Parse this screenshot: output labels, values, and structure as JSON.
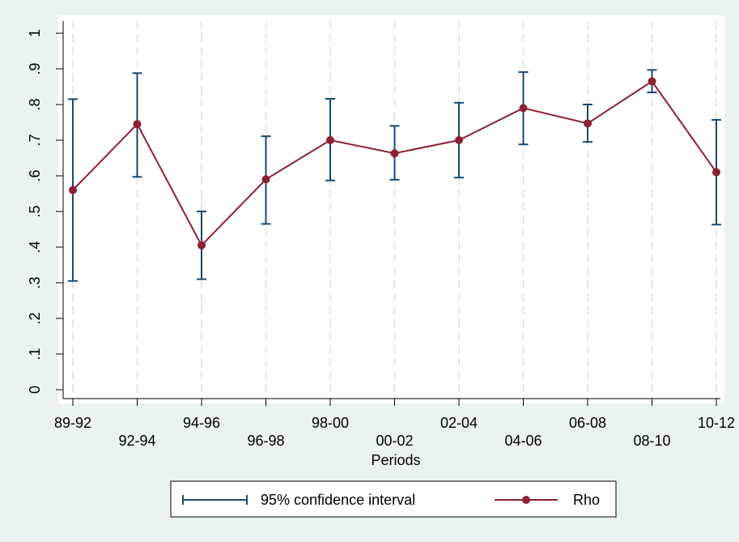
{
  "chart_data": {
    "type": "line",
    "categories": [
      "89-92",
      "92-94",
      "94-96",
      "96-98",
      "98-00",
      "00-02",
      "02-04",
      "04-06",
      "06-08",
      "08-10",
      "10-12"
    ],
    "xlabel": "Periods",
    "ylabel": "",
    "ylim": [
      0,
      1
    ],
    "yticks": [
      "0",
      ".1",
      ".2",
      ".3",
      ".4",
      ".5",
      ".6",
      ".7",
      ".8",
      ".9",
      "1"
    ],
    "grid": "vertical dashed",
    "series": [
      {
        "name": "Rho",
        "color": "#8b2131",
        "values": [
          0.56,
          0.745,
          0.405,
          0.59,
          0.7,
          0.663,
          0.7,
          0.79,
          0.747,
          0.865,
          0.61
        ]
      },
      {
        "name": "95% confidence interval",
        "color": "#1a476f",
        "lower": [
          0.305,
          0.597,
          0.31,
          0.465,
          0.587,
          0.589,
          0.595,
          0.688,
          0.695,
          0.834,
          0.463
        ],
        "upper": [
          0.815,
          0.888,
          0.5,
          0.711,
          0.816,
          0.74,
          0.805,
          0.891,
          0.8,
          0.897,
          0.757
        ]
      }
    ],
    "legend": {
      "placement": "bottom",
      "items": [
        "95% confidence interval",
        "Rho"
      ]
    }
  }
}
